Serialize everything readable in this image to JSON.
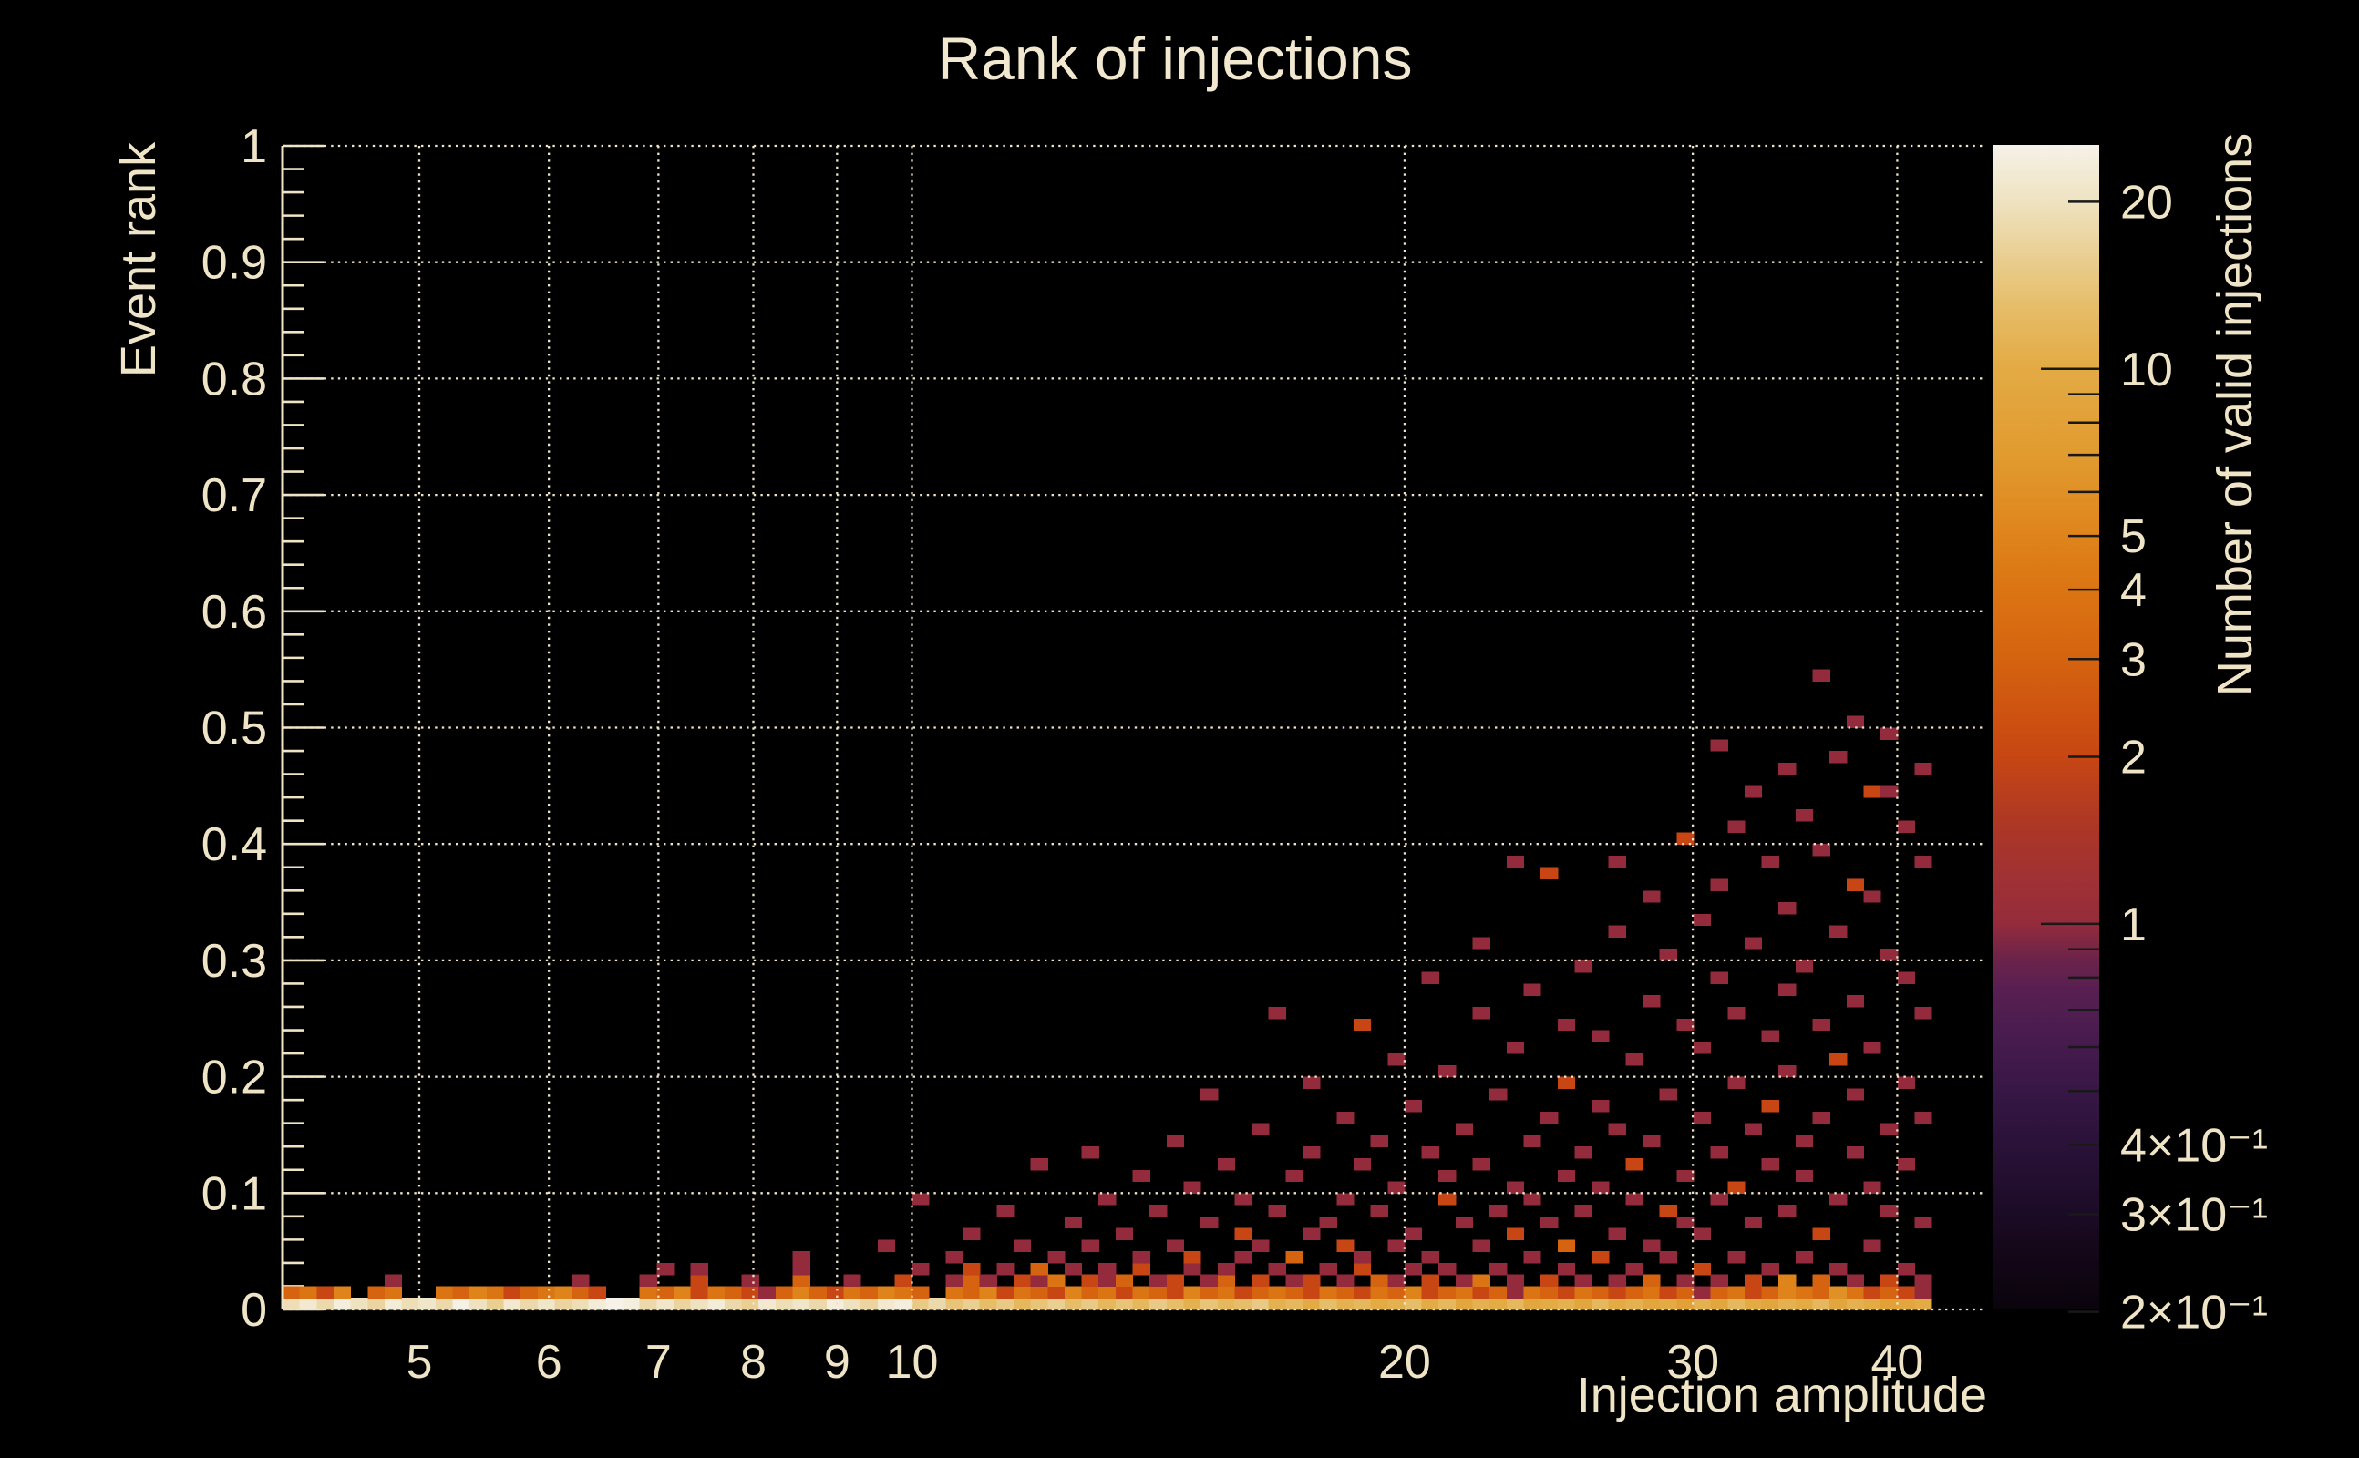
{
  "title": "Rank of injections",
  "colors": {
    "background": "#000000",
    "text": "#efe5c6",
    "axis": "#efe5c6",
    "grid": "#efe5c6",
    "colorbar_tick": "#191919"
  },
  "chart_data": {
    "type": "heatmap",
    "title": "Rank of injections",
    "xlabel": "Injection amplitude",
    "ylabel": "Event rank",
    "zlabel": "Number of valid injections",
    "x_scale": "log",
    "xlim": [
      4.125,
      45.1
    ],
    "ylim": [
      0,
      1
    ],
    "z_scale": "log",
    "zlim": [
      0.202,
      25.32
    ],
    "grid_on": true,
    "x_ticks": [
      5,
      6,
      7,
      8,
      9,
      10,
      20,
      30,
      40
    ],
    "x_tick_labels": [
      "5",
      "6",
      "7",
      "8",
      "9",
      "10",
      "20",
      "30",
      "40"
    ],
    "y_ticks": [
      0,
      0.1,
      0.2,
      0.3,
      0.4,
      0.5,
      0.6,
      0.7,
      0.8,
      0.9,
      1
    ],
    "y_tick_labels": [
      "0",
      "0.1",
      "0.2",
      "0.3",
      "0.4",
      "0.5",
      "0.6",
      "0.7",
      "0.8",
      "0.9",
      "1"
    ],
    "y_minor_step": 0.02,
    "colorbar_ticks": [
      20,
      10,
      9,
      8,
      7,
      6,
      5,
      4,
      3,
      2,
      1,
      0.9,
      0.8,
      0.7,
      0.6,
      0.5,
      0.4,
      0.3,
      0.2
    ],
    "colorbar_long_ticks": [
      10,
      1
    ],
    "colorbar_labels": [
      {
        "v": 20,
        "text": "20"
      },
      {
        "v": 10,
        "text": "10"
      },
      {
        "v": 5,
        "text": "5"
      },
      {
        "v": 4,
        "text": "4"
      },
      {
        "v": 3,
        "text": "3"
      },
      {
        "v": 2,
        "text": "2"
      },
      {
        "v": 1,
        "text": "1"
      },
      {
        "v": 0.4,
        "text": "4×10⁻¹"
      },
      {
        "v": 0.3,
        "text": "3×10⁻¹"
      },
      {
        "v": 0.2,
        "text": "2×10⁻¹"
      }
    ],
    "palette_stops": [
      [
        0.0,
        "#0a040c"
      ],
      [
        0.05,
        "#140719"
      ],
      [
        0.1,
        "#200d2c"
      ],
      [
        0.145,
        "#2b1239"
      ],
      [
        0.19,
        "#381746"
      ],
      [
        0.24,
        "#4a1c4f"
      ],
      [
        0.275,
        "#591f52"
      ],
      [
        0.3,
        "#6b234a"
      ],
      [
        0.333,
        "#962c3b"
      ],
      [
        0.37,
        "#a03134"
      ],
      [
        0.42,
        "#ae3824"
      ],
      [
        0.477,
        "#c84712"
      ],
      [
        0.561,
        "#d5640f"
      ],
      [
        0.62,
        "#db7513"
      ],
      [
        0.667,
        "#df851c"
      ],
      [
        0.73,
        "#e19a2e"
      ],
      [
        0.81,
        "#e3ab45"
      ],
      [
        0.86,
        "#e6bd68"
      ],
      [
        0.9,
        "#e9cd8e"
      ],
      [
        0.953,
        "#efe3c2"
      ],
      [
        1.0,
        "#f6f2e8"
      ]
    ],
    "grid": {
      "nx": 100,
      "ny": 100
    },
    "row0_counts": [
      19,
      22,
      18,
      24,
      20,
      17,
      23,
      19,
      21,
      18,
      25,
      20,
      16,
      22,
      18,
      21,
      17,
      19,
      23,
      26,
      24,
      18,
      21,
      17,
      20,
      23,
      18,
      16,
      22,
      19,
      21,
      18,
      24,
      20,
      17,
      22,
      24,
      15,
      18,
      14,
      16,
      13,
      15,
      12,
      14,
      16,
      13,
      15,
      12,
      14,
      12,
      15,
      13,
      11,
      14,
      12,
      13,
      15,
      11,
      12,
      10,
      13,
      11,
      12,
      10,
      11,
      13,
      10,
      12,
      9,
      11,
      10,
      12,
      9,
      10,
      11,
      9,
      12,
      10,
      11,
      9,
      10,
      8,
      11,
      9,
      12,
      10,
      9,
      11,
      10,
      12,
      9,
      11,
      10,
      8,
      9,
      10
    ],
    "row1_counts": [
      3,
      4,
      2,
      5,
      0,
      3,
      4,
      0,
      0,
      4,
      3,
      5,
      4,
      2,
      3,
      4,
      5,
      3,
      2,
      0,
      0,
      4,
      3,
      5,
      2,
      4,
      3,
      2,
      1,
      3,
      5,
      3,
      2,
      4,
      3,
      5,
      4,
      3,
      0,
      4,
      3,
      5,
      2,
      4,
      3,
      2,
      5,
      3,
      4,
      2,
      4,
      3,
      2,
      5,
      3,
      4,
      2,
      3,
      4,
      3,
      2,
      4,
      3,
      2,
      4,
      3,
      5,
      2,
      3,
      4,
      2,
      3,
      1,
      4,
      3,
      2,
      4,
      3,
      2,
      3,
      4,
      2,
      3,
      1,
      3,
      4,
      2,
      3,
      5,
      4,
      3,
      6,
      4,
      2,
      3,
      2,
      1
    ],
    "scatter_cells": [
      6,
      2,
      1,
      17,
      2,
      1,
      21,
      2,
      1,
      22,
      3,
      1,
      24,
      2,
      2,
      24,
      3,
      1,
      27,
      2,
      1,
      30,
      2,
      3,
      30,
      3,
      1,
      30,
      4,
      1,
      33,
      2,
      1,
      35,
      5,
      1,
      36,
      2,
      2,
      37,
      3,
      1,
      37,
      9,
      1,
      39,
      2,
      1,
      39,
      4,
      1,
      40,
      2,
      3,
      40,
      3,
      2,
      40,
      6,
      1,
      41,
      2,
      1,
      42,
      3,
      1,
      42,
      8,
      1,
      43,
      2,
      2,
      43,
      5,
      1,
      44,
      2,
      1,
      44,
      3,
      3,
      44,
      12,
      1,
      45,
      2,
      4,
      45,
      4,
      1,
      46,
      3,
      1,
      46,
      7,
      1,
      47,
      2,
      2,
      47,
      5,
      1,
      47,
      13,
      1,
      48,
      2,
      1,
      48,
      3,
      1,
      48,
      9,
      1,
      49,
      2,
      3,
      49,
      6,
      1,
      50,
      3,
      2,
      50,
      4,
      1,
      50,
      11,
      1,
      51,
      2,
      1,
      51,
      8,
      1,
      52,
      2,
      2,
      52,
      5,
      1,
      52,
      14,
      1,
      53,
      3,
      1,
      53,
      4,
      2,
      53,
      10,
      1,
      54,
      2,
      1,
      54,
      7,
      1,
      54,
      18,
      1,
      55,
      2,
      3,
      55,
      3,
      1,
      55,
      12,
      1,
      56,
      4,
      1,
      56,
      6,
      2,
      56,
      9,
      1,
      57,
      2,
      2,
      57,
      5,
      1,
      57,
      15,
      1,
      58,
      3,
      1,
      58,
      8,
      1,
      58,
      25,
      1,
      59,
      2,
      1,
      59,
      4,
      3,
      59,
      11,
      1,
      60,
      2,
      2,
      60,
      6,
      1,
      60,
      13,
      1,
      60,
      19,
      1,
      61,
      3,
      1,
      61,
      7,
      1,
      62,
      2,
      1,
      62,
      5,
      2,
      62,
      9,
      1,
      62,
      16,
      1,
      63,
      3,
      2,
      63,
      4,
      1,
      63,
      12,
      1,
      63,
      24,
      2,
      64,
      2,
      3,
      64,
      8,
      1,
      64,
      14,
      1,
      65,
      2,
      1,
      65,
      5,
      1,
      65,
      10,
      1,
      65,
      21,
      1,
      66,
      3,
      1,
      66,
      6,
      1,
      66,
      17,
      1,
      67,
      2,
      2,
      67,
      4,
      1,
      67,
      13,
      1,
      67,
      28,
      1,
      68,
      3,
      1,
      68,
      9,
      2,
      68,
      11,
      1,
      68,
      20,
      1,
      69,
      2,
      1,
      69,
      7,
      1,
      69,
      15,
      1,
      70,
      2,
      4,
      70,
      5,
      1,
      70,
      12,
      1,
      70,
      25,
      1,
      70,
      31,
      1,
      71,
      3,
      1,
      71,
      8,
      1,
      71,
      18,
      1,
      72,
      2,
      1,
      72,
      6,
      2,
      72,
      10,
      1,
      72,
      22,
      1,
      72,
      38,
      1,
      73,
      4,
      1,
      73,
      9,
      1,
      73,
      14,
      1,
      73,
      27,
      1,
      74,
      2,
      2,
      74,
      7,
      1,
      74,
      16,
      1,
      74,
      37,
      2,
      75,
      3,
      1,
      75,
      5,
      3,
      75,
      11,
      1,
      75,
      19,
      2,
      75,
      24,
      1,
      76,
      2,
      1,
      76,
      8,
      1,
      76,
      13,
      1,
      76,
      29,
      1,
      77,
      4,
      2,
      77,
      10,
      1,
      77,
      17,
      1,
      77,
      23,
      1,
      78,
      2,
      1,
      78,
      6,
      1,
      78,
      15,
      1,
      78,
      32,
      1,
      78,
      38,
      1,
      79,
      3,
      1,
      79,
      9,
      1,
      79,
      12,
      2,
      79,
      21,
      1,
      80,
      2,
      3,
      80,
      5,
      1,
      80,
      14,
      1,
      80,
      26,
      1,
      80,
      35,
      1,
      81,
      4,
      1,
      81,
      8,
      2,
      81,
      18,
      1,
      81,
      30,
      1,
      82,
      2,
      1,
      82,
      7,
      1,
      82,
      11,
      1,
      82,
      24,
      1,
      82,
      40,
      2,
      83,
      3,
      2,
      83,
      6,
      1,
      83,
      16,
      1,
      83,
      22,
      1,
      83,
      33,
      1,
      84,
      2,
      1,
      84,
      9,
      1,
      84,
      13,
      1,
      84,
      28,
      1,
      84,
      36,
      1,
      84,
      48,
      1,
      85,
      4,
      1,
      85,
      10,
      2,
      85,
      19,
      1,
      85,
      25,
      1,
      85,
      41,
      1,
      86,
      2,
      2,
      86,
      7,
      1,
      86,
      15,
      1,
      86,
      31,
      1,
      86,
      44,
      1,
      87,
      3,
      1,
      87,
      12,
      1,
      87,
      17,
      2,
      87,
      23,
      1,
      87,
      38,
      1,
      88,
      2,
      5,
      88,
      8,
      1,
      88,
      20,
      1,
      88,
      27,
      1,
      88,
      34,
      1,
      88,
      46,
      1,
      89,
      4,
      1,
      89,
      11,
      1,
      89,
      14,
      1,
      89,
      29,
      1,
      89,
      42,
      1,
      90,
      2,
      3,
      90,
      6,
      2,
      90,
      16,
      1,
      90,
      24,
      1,
      90,
      39,
      1,
      90,
      54,
      1,
      91,
      3,
      1,
      91,
      9,
      1,
      91,
      21,
      2,
      91,
      32,
      1,
      91,
      47,
      1,
      92,
      2,
      1,
      92,
      13,
      1,
      92,
      18,
      1,
      92,
      26,
      1,
      92,
      36,
      2,
      92,
      50,
      1,
      93,
      5,
      1,
      93,
      10,
      1,
      93,
      22,
      1,
      93,
      35,
      1,
      93,
      44,
      2,
      94,
      2,
      2,
      94,
      8,
      1,
      94,
      15,
      1,
      94,
      30,
      1,
      94,
      44,
      1,
      94,
      49,
      1,
      95,
      3,
      1,
      95,
      12,
      1,
      95,
      19,
      1,
      95,
      28,
      1,
      95,
      41,
      1,
      96,
      2,
      1,
      96,
      7,
      1,
      96,
      16,
      1,
      96,
      25,
      1,
      96,
      38,
      1,
      96,
      46,
      1
    ]
  }
}
